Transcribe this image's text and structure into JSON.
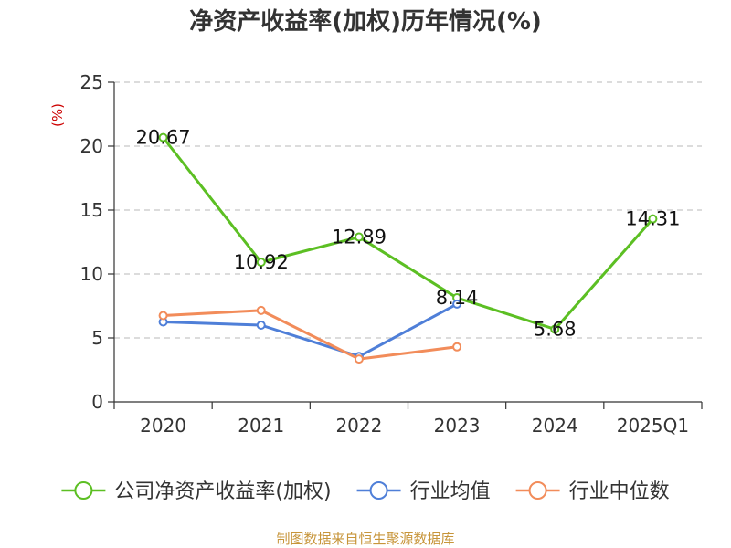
{
  "chart_data": {
    "type": "line",
    "title": "净资产收益率(加权)历年情况(%)",
    "ylabel": "(%)",
    "xlabel": "",
    "ylim": [
      0,
      25
    ],
    "yticks": [
      0,
      5,
      10,
      15,
      20,
      25
    ],
    "grid": true,
    "legend_position": "bottom",
    "categories": [
      "2020",
      "2021",
      "2022",
      "2023",
      "2024",
      "2025Q1"
    ],
    "series": [
      {
        "name": "公司净资产收益率(加权)",
        "color": "#5cbf23",
        "values": [
          20.67,
          10.92,
          12.89,
          8.14,
          5.68,
          14.31
        ],
        "labels": [
          "20.67",
          "10.92",
          "12.89",
          "8.14",
          "5.68",
          "14.31"
        ]
      },
      {
        "name": "行业均值",
        "color": "#4f7fd8",
        "values": [
          6.25,
          6.0,
          3.55,
          7.65,
          null,
          null
        ]
      },
      {
        "name": "行业中位数",
        "color": "#f28c5a",
        "values": [
          6.75,
          7.15,
          3.35,
          4.3,
          null,
          null
        ]
      }
    ],
    "source": "制图数据来自恒生聚源数据库"
  }
}
